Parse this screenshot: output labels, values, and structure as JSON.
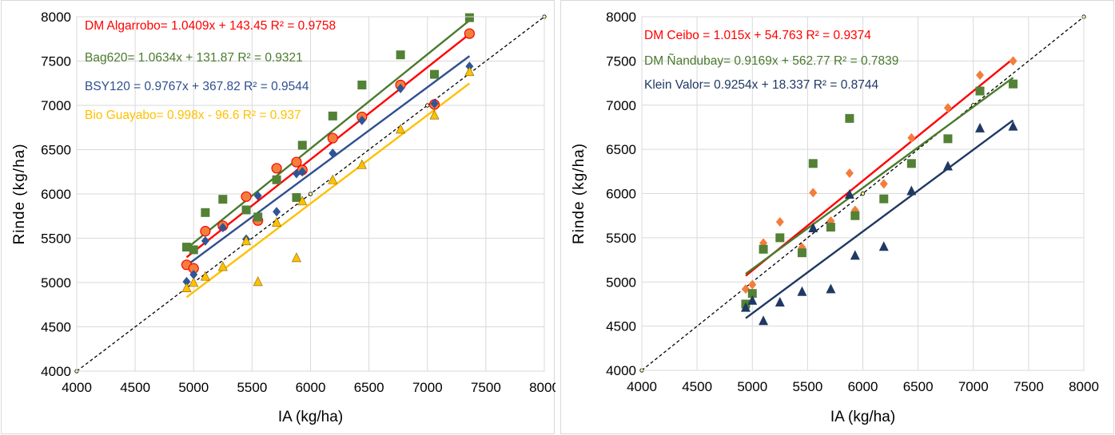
{
  "chart_data": [
    {
      "type": "scatter",
      "xlabel": "IA (kg/ha)",
      "ylabel": "Rinde (kg/ha)",
      "xlim": [
        4000,
        8000
      ],
      "ylim": [
        4000,
        8000
      ],
      "xticks": [
        "4000",
        "4500",
        "5000",
        "5500",
        "6000",
        "6500",
        "7000",
        "7500",
        "8000"
      ],
      "yticks": [
        "4000",
        "4500",
        "5000",
        "5500",
        "6000",
        "6500",
        "7000",
        "7500",
        "8000"
      ],
      "grid": "on",
      "identity_line": {
        "x": [
          4000,
          6000,
          7000,
          8000
        ],
        "y": [
          4000,
          6000,
          7000,
          8000
        ],
        "style": "dashed",
        "color": "#000000"
      },
      "x": [
        4940,
        5000,
        5100,
        5250,
        5450,
        5550,
        5710,
        5880,
        5930,
        6190,
        6440,
        6770,
        7060,
        7360
      ],
      "series": [
        {
          "name": "DM Algarrobo",
          "marker": "circle",
          "color": "#ff0000",
          "fill": "#f0803c",
          "values": [
            5200,
            5160,
            5580,
            5640,
            5970,
            5700,
            6290,
            6360,
            6270,
            6630,
            6870,
            7230,
            7010,
            7810
          ],
          "trendline": {
            "slope": 1.0409,
            "intercept": 143.45
          },
          "equation": "DM Algarrobo= 1.0409x + 143.45 R² = 0.9758"
        },
        {
          "name": "Bag620",
          "marker": "square",
          "color": "#4a7a2e",
          "fill": "#538135",
          "values": [
            5400,
            5370,
            5790,
            5940,
            5820,
            5740,
            6160,
            5960,
            6550,
            6880,
            7230,
            7570,
            7350,
            7990
          ],
          "trendline": {
            "slope": 1.0634,
            "intercept": 131.87
          },
          "equation": "Bag620= 1.0634x + 131.87 R² = 0.9321"
        },
        {
          "name": "BSY120",
          "marker": "diamond",
          "color": "#2f4f8f",
          "fill": "#2f5597",
          "values": [
            5010,
            5090,
            5470,
            5620,
            5490,
            5980,
            5800,
            6230,
            6250,
            6460,
            6830,
            7190,
            7020,
            7440
          ],
          "trendline": {
            "slope": 0.9767,
            "intercept": 367.82
          },
          "equation": "BSY120 = 0.9767x + 367.82 R² = 0.9544"
        },
        {
          "name": "Bio Guayabo",
          "marker": "triangle",
          "color": "#ffc000",
          "fill": "#ffc000",
          "values": [
            4940,
            5000,
            5070,
            5180,
            5470,
            5010,
            5680,
            5280,
            5920,
            6160,
            6330,
            6730,
            6890,
            7380
          ],
          "trendline": {
            "slope": 0.998,
            "intercept": -96.6
          },
          "equation": "Bio Guayabo= 0.998x - 96.6 R² = 0.937"
        }
      ]
    },
    {
      "type": "scatter",
      "xlabel": "IA (kg/ha)",
      "ylabel": "Rinde (kg/ha)",
      "xlim": [
        4000,
        8000
      ],
      "ylim": [
        4000,
        8000
      ],
      "xticks": [
        "4000",
        "4500",
        "5000",
        "5500",
        "6000",
        "6500",
        "7000",
        "7500",
        "8000"
      ],
      "yticks": [
        "4000",
        "4500",
        "5000",
        "5500",
        "6000",
        "6500",
        "7000",
        "7500",
        "8000"
      ],
      "grid": "on",
      "identity_line": {
        "x": [
          4000,
          6000,
          7000,
          8000
        ],
        "y": [
          4000,
          6000,
          7000,
          8000
        ],
        "style": "dashed",
        "color": "#000000"
      },
      "x": [
        4940,
        5000,
        5100,
        5250,
        5450,
        5550,
        5710,
        5880,
        5930,
        6190,
        6440,
        6770,
        7060,
        7360
      ],
      "series": [
        {
          "name": "DM Ceibo",
          "marker": "diamond",
          "color": "#ff0000",
          "fill": "#f47c3c",
          "values": [
            4920,
            4970,
            5440,
            5680,
            5390,
            6010,
            5690,
            6230,
            5810,
            6110,
            6630,
            6970,
            7340,
            7500
          ],
          "trendline": {
            "slope": 1.015,
            "intercept": 54.763
          },
          "equation": "DM Ceibo = 1.015x + 54.763 R² = 0.9374"
        },
        {
          "name": "DM Ñandubay",
          "marker": "square",
          "color": "#4a7a2e",
          "fill": "#538135",
          "values": [
            4750,
            4870,
            5370,
            5500,
            5330,
            6340,
            5620,
            6850,
            5750,
            5940,
            6340,
            6620,
            7160,
            7240
          ],
          "trendline": {
            "slope": 0.9169,
            "intercept": 562.77
          },
          "equation": "DM Ñandubay= 0.9169x + 562.77 R² = 0.7839"
        },
        {
          "name": "Klein Valor",
          "marker": "triangle",
          "color": "#1f3864",
          "fill": "#203864",
          "values": [
            4710,
            4790,
            4560,
            4770,
            4890,
            5610,
            4920,
            5990,
            5300,
            5400,
            6030,
            6310,
            6740,
            6760
          ],
          "trendline": {
            "slope": 0.9254,
            "intercept": 18.337
          },
          "equation": "Klein Valor= 0.9254x + 18.337 R² = 0.8744"
        }
      ]
    }
  ]
}
